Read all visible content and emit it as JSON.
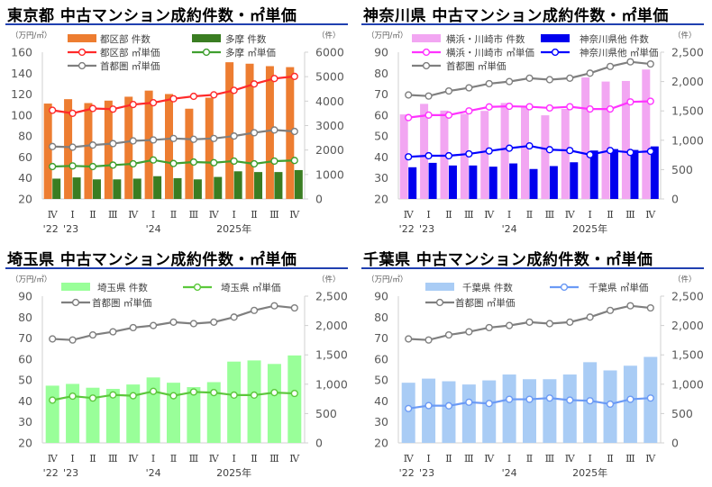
{
  "chart_data": [
    {
      "type": "bar",
      "title": "東京都 中古マンション成約件数・㎡単価",
      "left_unit": "（万円/㎡）",
      "right_unit": "（件）",
      "ylim": [
        20,
        160
      ],
      "y2lim": [
        0,
        6000
      ],
      "left_ticks": [
        "20",
        "40",
        "60",
        "80",
        "100",
        "120",
        "140",
        "160"
      ],
      "right_ticks": [
        "0",
        "1000",
        "2000",
        "3000",
        "4000",
        "5000",
        "6000"
      ],
      "categories": [
        "Ⅳ",
        "Ⅰ",
        "Ⅱ",
        "Ⅲ",
        "Ⅳ",
        "Ⅰ",
        "Ⅱ",
        "Ⅲ",
        "Ⅳ",
        "Ⅰ",
        "Ⅱ",
        "Ⅲ",
        "Ⅳ"
      ],
      "year_labels": [
        "'22",
        "'23",
        "",
        "",
        "",
        "'24",
        "",
        "",
        "",
        "2025年",
        "",
        "",
        ""
      ],
      "series": [
        {
          "name": "都区部 件数",
          "type": "bar",
          "axis": "right",
          "color": "#ED7D31",
          "values": [
            3900,
            4080,
            3920,
            4020,
            4180,
            4430,
            4290,
            3690,
            4140,
            5590,
            5530,
            5430,
            5390
          ]
        },
        {
          "name": "多摩 件数",
          "type": "bar",
          "axis": "right",
          "color": "#3A7D22",
          "values": [
            830,
            880,
            800,
            800,
            830,
            930,
            850,
            800,
            900,
            1130,
            1100,
            1100,
            1180
          ]
        },
        {
          "name": "都区部 ㎡単価",
          "type": "line",
          "axis": "left",
          "color": "#FF2A2A",
          "values": [
            104.6,
            101.7,
            106.3,
            105.7,
            110.1,
            111.8,
            115.6,
            117.9,
            119.3,
            123.6,
            129.7,
            134.9,
            136.9
          ]
        },
        {
          "name": "多摩 ㎡単価",
          "type": "line",
          "axis": "left",
          "color": "#3F9F2F",
          "values": [
            50.9,
            51.5,
            50.9,
            52.3,
            53.5,
            57.2,
            53.8,
            55.2,
            54.6,
            56.1,
            53.5,
            56.1,
            56.7
          ]
        },
        {
          "name": "首都圏 ㎡単価",
          "type": "line",
          "axis": "left",
          "color": "#7F7F7F",
          "values": [
            70.0,
            69.4,
            71.4,
            72.8,
            75.4,
            76.3,
            77.7,
            76.9,
            77.7,
            80.0,
            83.2,
            85.8,
            84.4
          ]
        }
      ]
    },
    {
      "type": "bar",
      "title": "神奈川県 中古マンション成約件数・㎡単価",
      "left_unit": "（万円/㎡）",
      "right_unit": "（件）",
      "ylim": [
        20,
        90
      ],
      "y2lim": [
        0,
        2500
      ],
      "left_ticks": [
        "20",
        "30",
        "40",
        "50",
        "60",
        "70",
        "80",
        "90"
      ],
      "right_ticks": [
        "0",
        "500",
        "1,000",
        "1,500",
        "2,000",
        "2,500"
      ],
      "categories": [
        "Ⅳ",
        "Ⅰ",
        "Ⅱ",
        "Ⅲ",
        "Ⅳ",
        "Ⅰ",
        "Ⅱ",
        "Ⅲ",
        "Ⅳ",
        "Ⅰ",
        "Ⅱ",
        "Ⅲ",
        "Ⅳ"
      ],
      "year_labels": [
        "'22",
        "'23",
        "",
        "",
        "",
        "'24",
        "",
        "",
        "",
        "2025年",
        "",
        "",
        ""
      ],
      "series": [
        {
          "name": "横浜・川崎市 件数",
          "type": "bar",
          "axis": "right",
          "color": "#F2A6F2",
          "values": [
            1440,
            1620,
            1505,
            1450,
            1500,
            1635,
            1570,
            1425,
            1535,
            2070,
            2000,
            2010,
            2205
          ]
        },
        {
          "name": "神奈川県他 件数",
          "type": "bar",
          "axis": "right",
          "color": "#0000EE",
          "values": [
            540,
            615,
            570,
            570,
            550,
            605,
            510,
            560,
            625,
            825,
            850,
            835,
            895
          ]
        },
        {
          "name": "横浜・川崎市 ㎡単価",
          "type": "line",
          "axis": "left",
          "color": "#FF33FF",
          "values": [
            58.8,
            60.0,
            60.0,
            62.0,
            63.9,
            64.2,
            64.0,
            63.4,
            64.0,
            62.9,
            62.9,
            66.3,
            66.6
          ]
        },
        {
          "name": "神奈川県他 ㎡単価",
          "type": "line",
          "axis": "left",
          "color": "#0000FF",
          "values": [
            40.1,
            40.6,
            40.6,
            41.5,
            42.9,
            44.2,
            45.3,
            43.5,
            43.1,
            41.1,
            43.1,
            42.2,
            42.7
          ]
        },
        {
          "name": "首都圏 ㎡単価",
          "type": "line",
          "axis": "left",
          "color": "#7F7F7F",
          "values": [
            69.6,
            69.1,
            71.5,
            73.0,
            75.0,
            76.0,
            77.6,
            76.9,
            77.6,
            80.0,
            83.2,
            85.4,
            84.4
          ]
        }
      ]
    },
    {
      "type": "bar",
      "title": "埼玉県 中古マンション成約件数・㎡単価",
      "left_unit": "（万円/㎡）",
      "right_unit": "（件）",
      "ylim": [
        20,
        90
      ],
      "y2lim": [
        0,
        2500
      ],
      "left_ticks": [
        "20",
        "30",
        "40",
        "50",
        "60",
        "70",
        "80",
        "90"
      ],
      "right_ticks": [
        "0",
        "500",
        "1,000",
        "1,500",
        "2,000",
        "2,500"
      ],
      "categories": [
        "Ⅳ",
        "Ⅰ",
        "Ⅱ",
        "Ⅲ",
        "Ⅳ",
        "Ⅰ",
        "Ⅱ",
        "Ⅲ",
        "Ⅳ",
        "Ⅰ",
        "Ⅱ",
        "Ⅲ",
        "Ⅳ"
      ],
      "year_labels": [
        "'22",
        "'23",
        "",
        "",
        "",
        "'24",
        "",
        "",
        "",
        "2025年",
        "",
        "",
        ""
      ],
      "series": [
        {
          "name": "埼玉県 件数",
          "type": "bar",
          "axis": "right",
          "color": "#99FF99",
          "values": [
            975,
            1005,
            940,
            920,
            995,
            1115,
            1025,
            950,
            1035,
            1385,
            1405,
            1345,
            1490
          ]
        },
        {
          "name": "埼玉県 ㎡単価",
          "type": "line",
          "axis": "left",
          "color": "#5CC83C",
          "values": [
            40.4,
            42.3,
            41.4,
            42.9,
            42.5,
            44.6,
            42.5,
            44.3,
            44.0,
            42.8,
            42.8,
            44.0,
            43.6
          ]
        },
        {
          "name": "首都圏 ㎡単価",
          "type": "line",
          "axis": "left",
          "color": "#7F7F7F",
          "values": [
            69.6,
            69.1,
            71.5,
            73.0,
            75.0,
            76.0,
            77.6,
            76.9,
            77.6,
            80.0,
            83.2,
            85.4,
            84.4
          ]
        }
      ]
    },
    {
      "type": "bar",
      "title": "千葉県 中古マンション成約件数・㎡単価",
      "left_unit": "（万円/㎡）",
      "right_unit": "（件）",
      "ylim": [
        20,
        90
      ],
      "y2lim": [
        0,
        2500
      ],
      "left_ticks": [
        "20",
        "30",
        "40",
        "50",
        "60",
        "70",
        "80",
        "90"
      ],
      "right_ticks": [
        "0",
        "500",
        "1,000",
        "1,500",
        "2,000",
        "2,500"
      ],
      "categories": [
        "Ⅳ",
        "Ⅰ",
        "Ⅱ",
        "Ⅲ",
        "Ⅳ",
        "Ⅰ",
        "Ⅱ",
        "Ⅲ",
        "Ⅳ",
        "Ⅰ",
        "Ⅱ",
        "Ⅲ",
        "Ⅳ"
      ],
      "year_labels": [
        "'22",
        "'23",
        "",
        "",
        "",
        "'24",
        "",
        "",
        "",
        "2025年",
        "",
        "",
        ""
      ],
      "series": [
        {
          "name": "千葉県 件数",
          "type": "bar",
          "axis": "right",
          "color": "#A9CCF5",
          "values": [
            1025,
            1095,
            1050,
            995,
            1065,
            1165,
            1085,
            1085,
            1165,
            1375,
            1235,
            1315,
            1465
          ]
        },
        {
          "name": "千葉県 ㎡単価",
          "type": "line",
          "axis": "left",
          "color": "#6B9AF5",
          "values": [
            36.4,
            37.8,
            37.7,
            39.4,
            38.8,
            40.8,
            40.8,
            41.4,
            40.4,
            40.1,
            38.5,
            40.8,
            41.4
          ]
        },
        {
          "name": "首都圏 ㎡単価",
          "type": "line",
          "axis": "left",
          "color": "#7F7F7F",
          "values": [
            69.6,
            69.1,
            71.5,
            73.0,
            75.0,
            76.0,
            77.6,
            76.9,
            77.6,
            80.0,
            83.2,
            85.4,
            84.4
          ]
        }
      ]
    }
  ]
}
